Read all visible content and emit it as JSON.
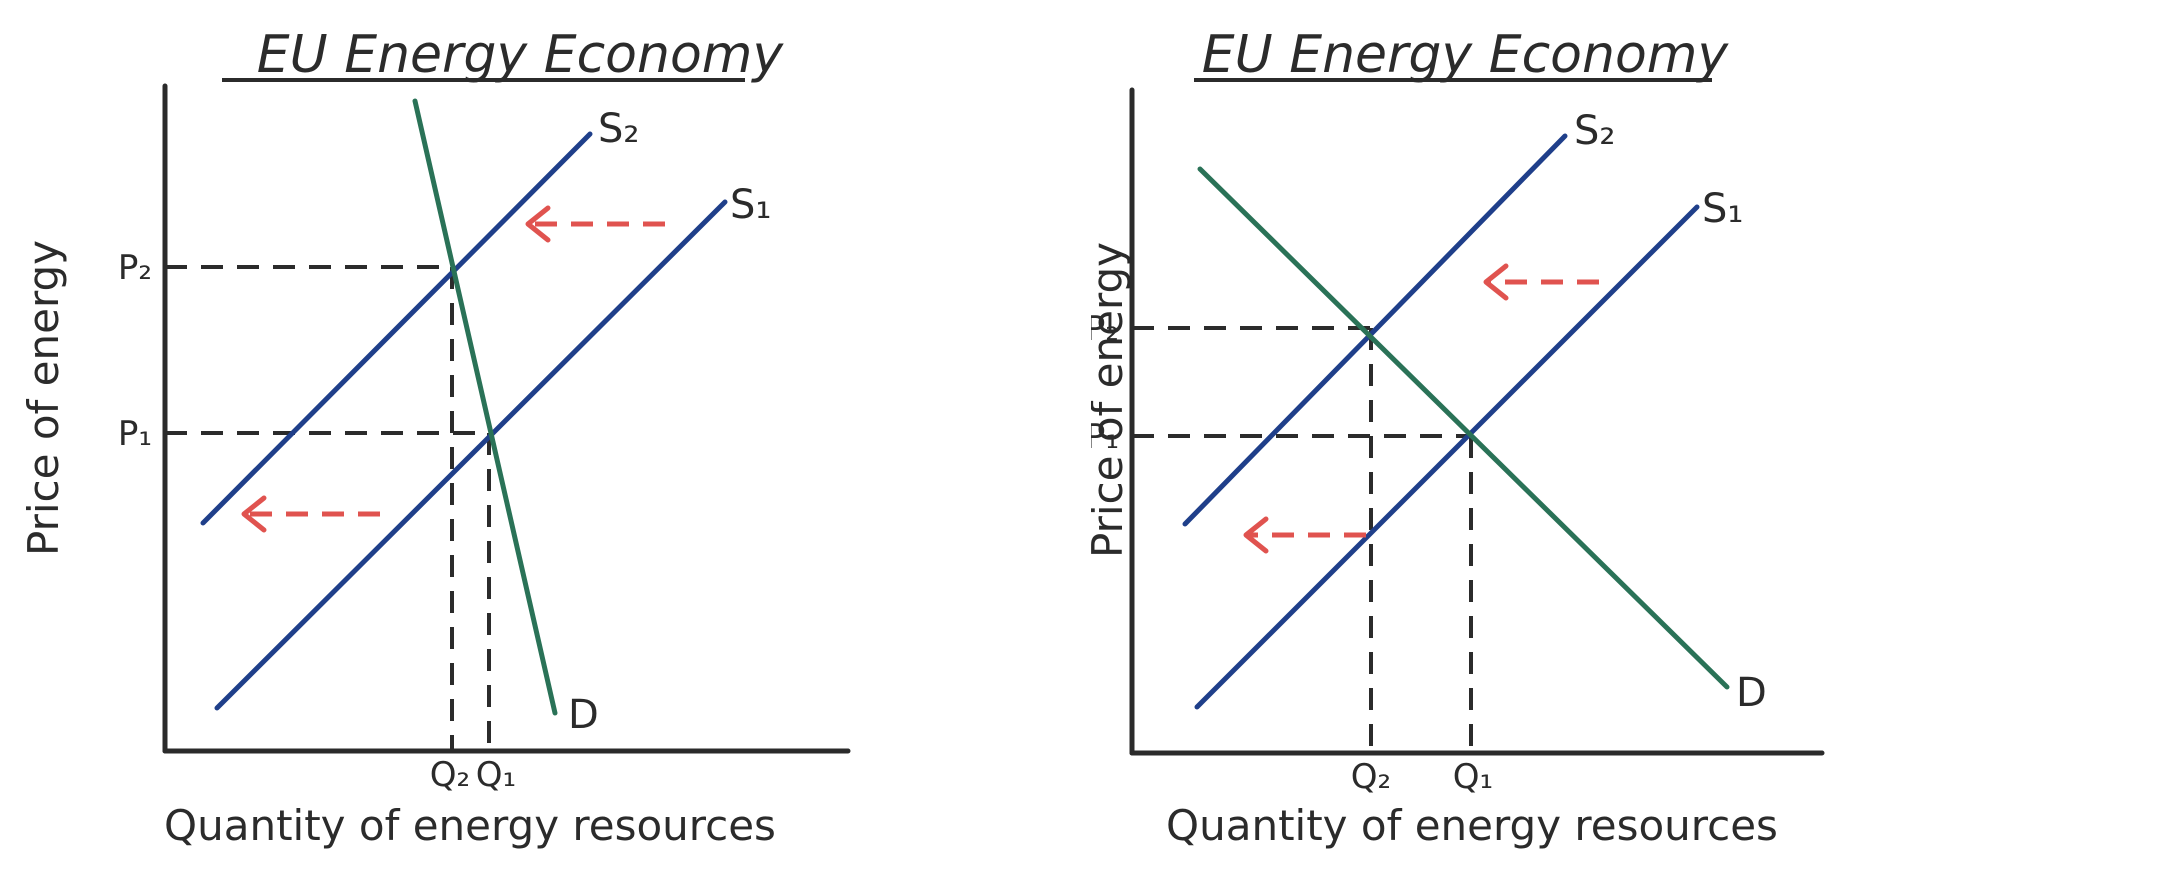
{
  "diagrams": [
    {
      "title": "EU Energy Economy",
      "y_axis_label": "Price of energy",
      "x_axis_label": "Quantity of energy resources",
      "curves": {
        "s1": "S₁",
        "s2": "S₂",
        "d": "D"
      },
      "price_ticks": {
        "p1": "P₁",
        "p2": "P₂"
      },
      "quantity_ticks": {
        "q1": "Q₁",
        "q2": "Q₂"
      },
      "demand_elasticity": "steep (inelastic)",
      "supply_shift": "left",
      "colors": {
        "supply": "#1f3f8a",
        "demand": "#2a7257",
        "shift_arrow": "#e0534f"
      }
    },
    {
      "title": "EU Energy Economy",
      "y_axis_label": "Price of energy",
      "x_axis_label": "Quantity of energy resources",
      "curves": {
        "s1": "S₁",
        "s2": "S₂",
        "d": "D"
      },
      "price_ticks": {
        "p1": "P₁",
        "p2": "P₂"
      },
      "quantity_ticks": {
        "q1": "Q₁",
        "q2": "Q₂"
      },
      "demand_elasticity": "shallow (elastic)",
      "supply_shift": "left",
      "colors": {
        "supply": "#1f3f8a",
        "demand": "#2a7257",
        "shift_arrow": "#e0534f"
      }
    }
  ]
}
